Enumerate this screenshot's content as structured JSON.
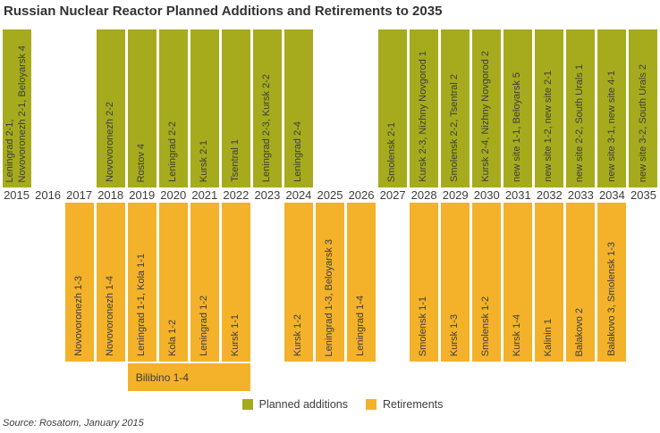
{
  "title": "Russian Nuclear Reactor Planned Additions and Retirements to 2035",
  "source_note": "Source: Rosatom, January 2015",
  "colors": {
    "addition": "#a6ab1e",
    "retirement": "#f3b22a",
    "bar_text": "#3d3d3d",
    "title_text": "#333333"
  },
  "legend": {
    "planned_additions_label": "Planned additions",
    "retirements_label": "Retirements",
    "position": "bottom-center"
  },
  "chart_data": {
    "type": "bar",
    "title": "Russian Nuclear Reactor Planned Additions and Retirements to 2035",
    "xlabel": "year",
    "x_range": [
      2015,
      2035
    ],
    "grid": false,
    "series_names": [
      "Planned additions",
      "Retirements"
    ],
    "columns": [
      {
        "year": 2015,
        "addition": "Leningrad 2-1,\nNovovoronezh 2-1, Beloyarsk 4",
        "retirement": ""
      },
      {
        "year": 2016,
        "addition": "",
        "retirement": ""
      },
      {
        "year": 2017,
        "addition": "",
        "retirement": "Novovoronezh 1-3"
      },
      {
        "year": 2018,
        "addition": "Novovoronezh 2-2",
        "retirement": "Novovoronezh 1-4"
      },
      {
        "year": 2019,
        "addition": "Rostov 4",
        "retirement": "Leningrad 1-1, Kola 1-1"
      },
      {
        "year": 2020,
        "addition": "Leningrad 2-2",
        "retirement": "Kola 1-2"
      },
      {
        "year": 2021,
        "addition": "Kursk 2-1",
        "retirement": "Leningrad 1-2"
      },
      {
        "year": 2022,
        "addition": "Tsentral 1",
        "retirement": "Kursk 1-1"
      },
      {
        "year": 2023,
        "addition": "Leningrad 2-3, Kursk 2-2",
        "retirement": ""
      },
      {
        "year": 2024,
        "addition": "Leningrad 2-4",
        "retirement": "Kursk 1-2"
      },
      {
        "year": 2025,
        "addition": "",
        "retirement": "Leningrad 1-3, Beloyarsk 3"
      },
      {
        "year": 2026,
        "addition": "",
        "retirement": "Leningrad 1-4"
      },
      {
        "year": 2027,
        "addition": "Smolensk 2-1",
        "retirement": ""
      },
      {
        "year": 2028,
        "addition": "Kursk 2-3, Nizhny Novgorod 1",
        "retirement": "Smolensk 1-1"
      },
      {
        "year": 2029,
        "addition": "Smolensk 2-2, Tsentral 2",
        "retirement": "Kursk 1-3"
      },
      {
        "year": 2030,
        "addition": "Kursk 2-4, Nizhny Novgorod 2",
        "retirement": "Smolensk 1-2"
      },
      {
        "year": 2031,
        "addition": "new site 1-1, Beloyarsk 5",
        "retirement": "Kursk 1-4"
      },
      {
        "year": 2032,
        "addition": "new site 1-2, new site 2-1",
        "retirement": "Kalinin 1"
      },
      {
        "year": 2033,
        "addition": "new site 2-2, South Urals 1",
        "retirement": "Balakovo 2"
      },
      {
        "year": 2034,
        "addition": "new site 3-1, new site 4-1",
        "retirement": "Balakovo 3, Smolensk 1-3"
      },
      {
        "year": 2035,
        "addition": "new site 3-2, South Urals 2",
        "retirement": ""
      }
    ],
    "multi_year_retirement": {
      "label": "Bilibino 1-4",
      "start_year": 2019,
      "end_year": 2022
    }
  }
}
